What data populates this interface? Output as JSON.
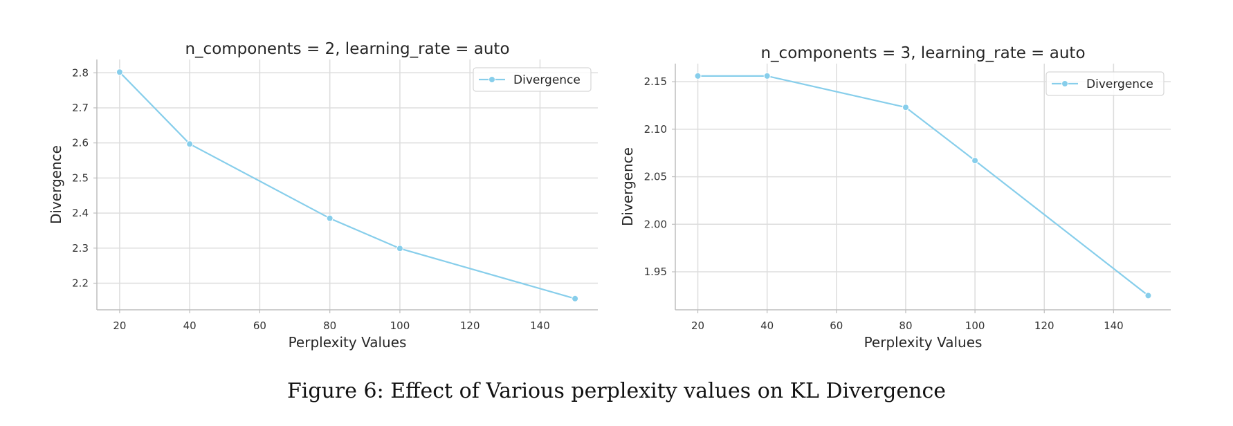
{
  "caption": "Figure 6: Effect of Various perplexity values on KL Divergence",
  "colors": {
    "line": "#87CEEB",
    "grid": "#dddddd",
    "axis": "#bdbdbd",
    "text": "#262626"
  },
  "chart_data": [
    {
      "type": "line",
      "title": "n_components = 2, learning_rate = auto",
      "xlabel": "Perplexity Values",
      "ylabel": "Divergence",
      "x": [
        20,
        40,
        80,
        100,
        150
      ],
      "series": [
        {
          "name": "Divergence",
          "values": [
            2.802,
            2.597,
            2.385,
            2.299,
            2.156
          ],
          "marker": "circle"
        }
      ],
      "xlim": [
        13.5,
        156.5
      ],
      "ylim": [
        2.124,
        2.838
      ],
      "xticks": [
        20,
        40,
        60,
        80,
        100,
        120,
        140
      ],
      "yticks": [
        2.2,
        2.3,
        2.4,
        2.5,
        2.6,
        2.7,
        2.8
      ],
      "ytick_labels": [
        "2.2",
        "2.3",
        "2.4",
        "2.5",
        "2.6",
        "2.7",
        "2.8"
      ],
      "grid": true,
      "legend": "top-right"
    },
    {
      "type": "line",
      "title": "n_components = 3, learning_rate = auto",
      "xlabel": "Perplexity Values",
      "ylabel": "Divergence",
      "x": [
        20,
        40,
        80,
        100,
        150
      ],
      "series": [
        {
          "name": "Divergence",
          "values": [
            2.156,
            2.156,
            2.123,
            2.067,
            1.925
          ],
          "marker": "circle"
        }
      ],
      "xlim": [
        13.5,
        156.5
      ],
      "ylim": [
        1.91,
        2.169
      ],
      "xticks": [
        20,
        40,
        60,
        80,
        100,
        120,
        140
      ],
      "yticks": [
        1.95,
        2.0,
        2.05,
        2.1,
        2.15
      ],
      "ytick_labels": [
        "1.95",
        "2.00",
        "2.05",
        "2.10",
        "2.15"
      ],
      "grid": true,
      "legend": "top-right"
    }
  ]
}
